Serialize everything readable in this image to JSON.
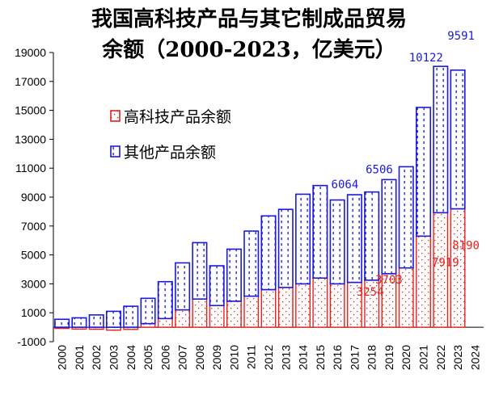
{
  "chart_data": {
    "type": "bar",
    "stacked": true,
    "title_lines": [
      "我国高科技产品与其它制成品贸易",
      "余额（2000-2023，亿美元）"
    ],
    "categories": [
      "2000",
      "2001",
      "2002",
      "2003",
      "2004",
      "2005",
      "2006",
      "2007",
      "2008",
      "2009",
      "2010",
      "2011",
      "2012",
      "2013",
      "2014",
      "2015",
      "2016",
      "2017",
      "2018",
      "2019",
      "2020",
      "2021",
      "2022",
      "2023",
      "2024"
    ],
    "series": [
      {
        "name": "高科技产品余额",
        "color": "#e8201c",
        "values": [
          -80,
          -130,
          -140,
          -200,
          -150,
          250,
          600,
          1200,
          1950,
          1500,
          1800,
          2150,
          2600,
          2750,
          3000,
          3400,
          3000,
          3100,
          3254,
          3703,
          4100,
          6300,
          7919,
          8190,
          null
        ]
      },
      {
        "name": "其他产品余额",
        "color": "#1a1adc",
        "values": [
          550,
          650,
          850,
          1100,
          1450,
          1750,
          2550,
          3250,
          3900,
          2750,
          3600,
          4500,
          5100,
          5400,
          6200,
          6400,
          5800,
          6064,
          6100,
          6506,
          7000,
          8900,
          10122,
          9591,
          null
        ]
      }
    ],
    "data_labels": [
      {
        "category": "2017",
        "series": "其他产品余额",
        "text": "6064"
      },
      {
        "category": "2019",
        "series": "其他产品余额",
        "text": "6506"
      },
      {
        "category": "2022",
        "series": "其他产品余额",
        "text": "10122"
      },
      {
        "category": "2023",
        "series": "其他产品余额",
        "text": "9591"
      },
      {
        "category": "2018",
        "series": "高科技产品余额",
        "text": "3254"
      },
      {
        "category": "2019",
        "series": "高科技产品余额",
        "text": "3703"
      },
      {
        "category": "2022",
        "series": "高科技产品余额",
        "text": "7919"
      },
      {
        "category": "2023",
        "series": "高科技产品余额",
        "text": "8190"
      }
    ],
    "y_ticks": [
      -1000,
      1000,
      3000,
      5000,
      7000,
      9000,
      11000,
      13000,
      15000,
      17000,
      19000
    ],
    "ylim": [
      -1000,
      19000
    ],
    "xlabel": "",
    "ylabel": "",
    "legend": {
      "placement": "upper-left"
    }
  }
}
